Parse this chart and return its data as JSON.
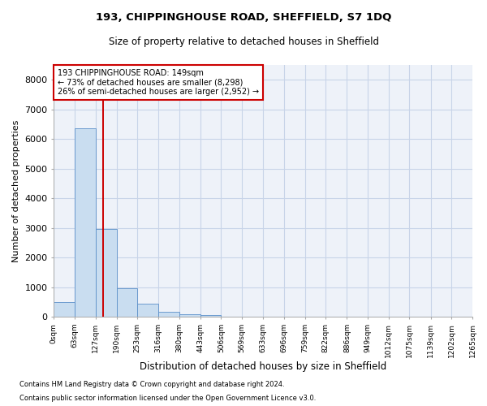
{
  "title": "193, CHIPPINGHOUSE ROAD, SHEFFIELD, S7 1DQ",
  "subtitle": "Size of property relative to detached houses in Sheffield",
  "xlabel": "Distribution of detached houses by size in Sheffield",
  "ylabel": "Number of detached properties",
  "footnote1": "Contains HM Land Registry data © Crown copyright and database right 2024.",
  "footnote2": "Contains public sector information licensed under the Open Government Licence v3.0.",
  "annotation_line1": "193 CHIPPINGHOUSE ROAD: 149sqm",
  "annotation_line2": "← 73% of detached houses are smaller (8,298)",
  "annotation_line3": "26% of semi-detached houses are larger (2,952) →",
  "bin_edges": [
    0,
    63,
    127,
    190,
    253,
    316,
    380,
    443,
    506,
    569,
    633,
    696,
    759,
    822,
    886,
    949,
    1012,
    1075,
    1139,
    1202,
    1265
  ],
  "bin_labels": [
    "0sqm",
    "63sqm",
    "127sqm",
    "190sqm",
    "253sqm",
    "316sqm",
    "380sqm",
    "443sqm",
    "506sqm",
    "569sqm",
    "633sqm",
    "696sqm",
    "759sqm",
    "822sqm",
    "886sqm",
    "949sqm",
    "1012sqm",
    "1075sqm",
    "1139sqm",
    "1202sqm",
    "1265sqm"
  ],
  "bar_heights": [
    490,
    6350,
    2950,
    950,
    430,
    175,
    75,
    50,
    0,
    0,
    0,
    0,
    0,
    0,
    0,
    0,
    0,
    0,
    0,
    0
  ],
  "bar_color": "#c9ddf0",
  "bar_edge_color": "#5b8fc9",
  "grid_color": "#c8d4e8",
  "bg_color": "#eef2f9",
  "vline_color": "#cc0000",
  "vline_x": 149,
  "annotation_box_color": "#cc0000",
  "ylim": [
    0,
    8500
  ],
  "yticks": [
    0,
    1000,
    2000,
    3000,
    4000,
    5000,
    6000,
    7000,
    8000
  ]
}
